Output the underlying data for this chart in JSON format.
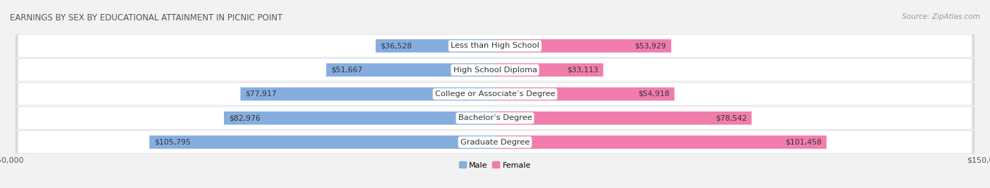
{
  "title": "EARNINGS BY SEX BY EDUCATIONAL ATTAINMENT IN PICNIC POINT",
  "source": "Source: ZipAtlas.com",
  "categories": [
    "Less than High School",
    "High School Diploma",
    "College or Associate’s Degree",
    "Bachelor’s Degree",
    "Graduate Degree"
  ],
  "male_values": [
    36528,
    51667,
    77917,
    82976,
    105795
  ],
  "female_values": [
    53929,
    33113,
    54918,
    78542,
    101458
  ],
  "male_color": "#85aede",
  "female_color": "#f07dab",
  "male_label": "Male",
  "female_label": "Female",
  "max_val": 150000,
  "bg_color": "#f2f2f2",
  "row_bg_color": "#ffffff",
  "row_shadow_color": "#d8d8e0",
  "title_fontsize": 8.5,
  "label_fontsize": 8.2,
  "value_fontsize": 7.8,
  "tick_fontsize": 8.0,
  "source_fontsize": 7.5
}
